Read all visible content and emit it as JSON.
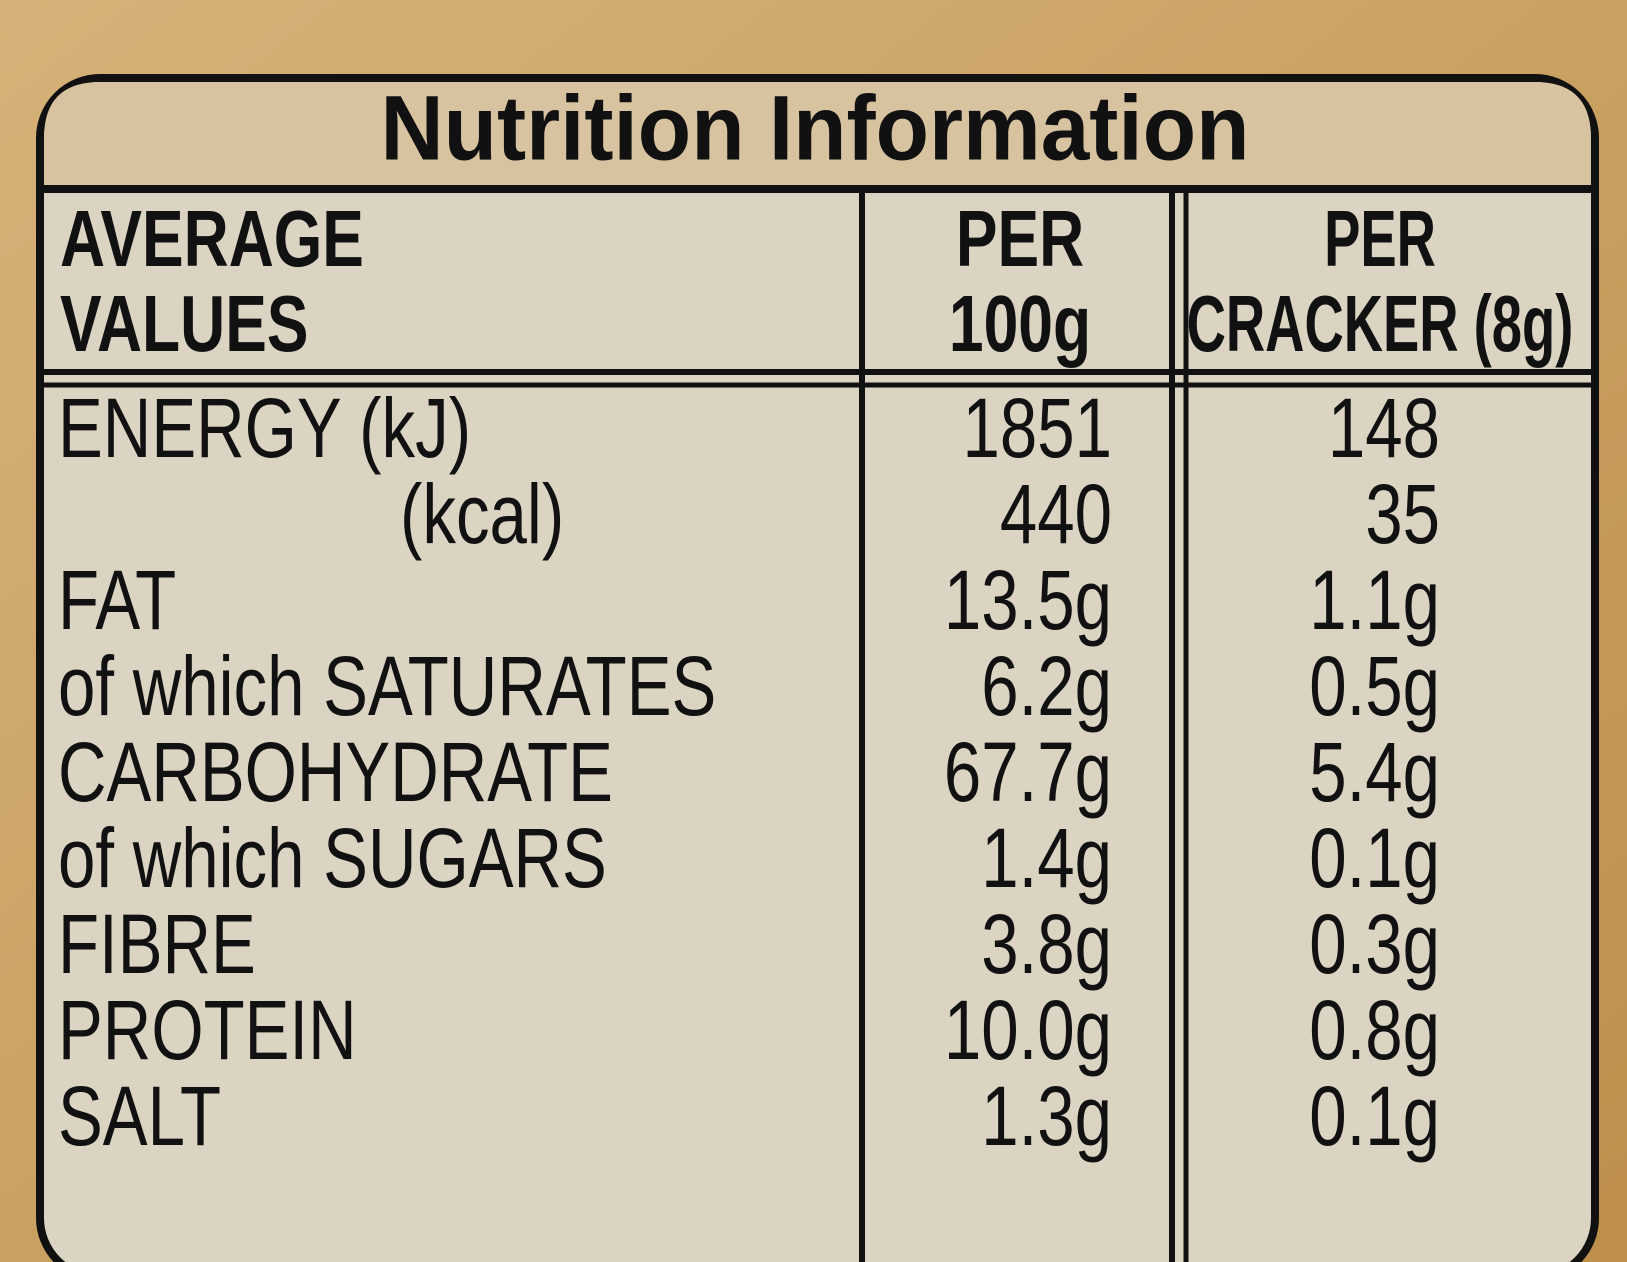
{
  "header": {
    "title": "Nutrition Information"
  },
  "table": {
    "columns": [
      [
        "AVERAGE",
        "VALUES"
      ],
      [
        "PER",
        "100g"
      ],
      [
        "PER",
        "CRACKER (8g)"
      ]
    ],
    "rows": [
      [
        "ENERGY (kJ)",
        "1851",
        "148"
      ],
      [
        "(kcal)",
        "440",
        "35"
      ],
      [
        "FAT",
        "13.5g",
        "1.1g"
      ],
      [
        "of which SATURATES",
        "6.2g",
        "0.5g"
      ],
      [
        "CARBOHYDRATE",
        "67.7g",
        "5.4g"
      ],
      [
        "of which SUGARS",
        "1.4g",
        "0.1g"
      ],
      [
        "FIBRE",
        "3.8g",
        "0.3g"
      ],
      [
        "PROTEIN",
        "10.0g",
        "0.8g"
      ],
      [
        "SALT",
        "1.3g",
        "0.1g"
      ]
    ]
  }
}
